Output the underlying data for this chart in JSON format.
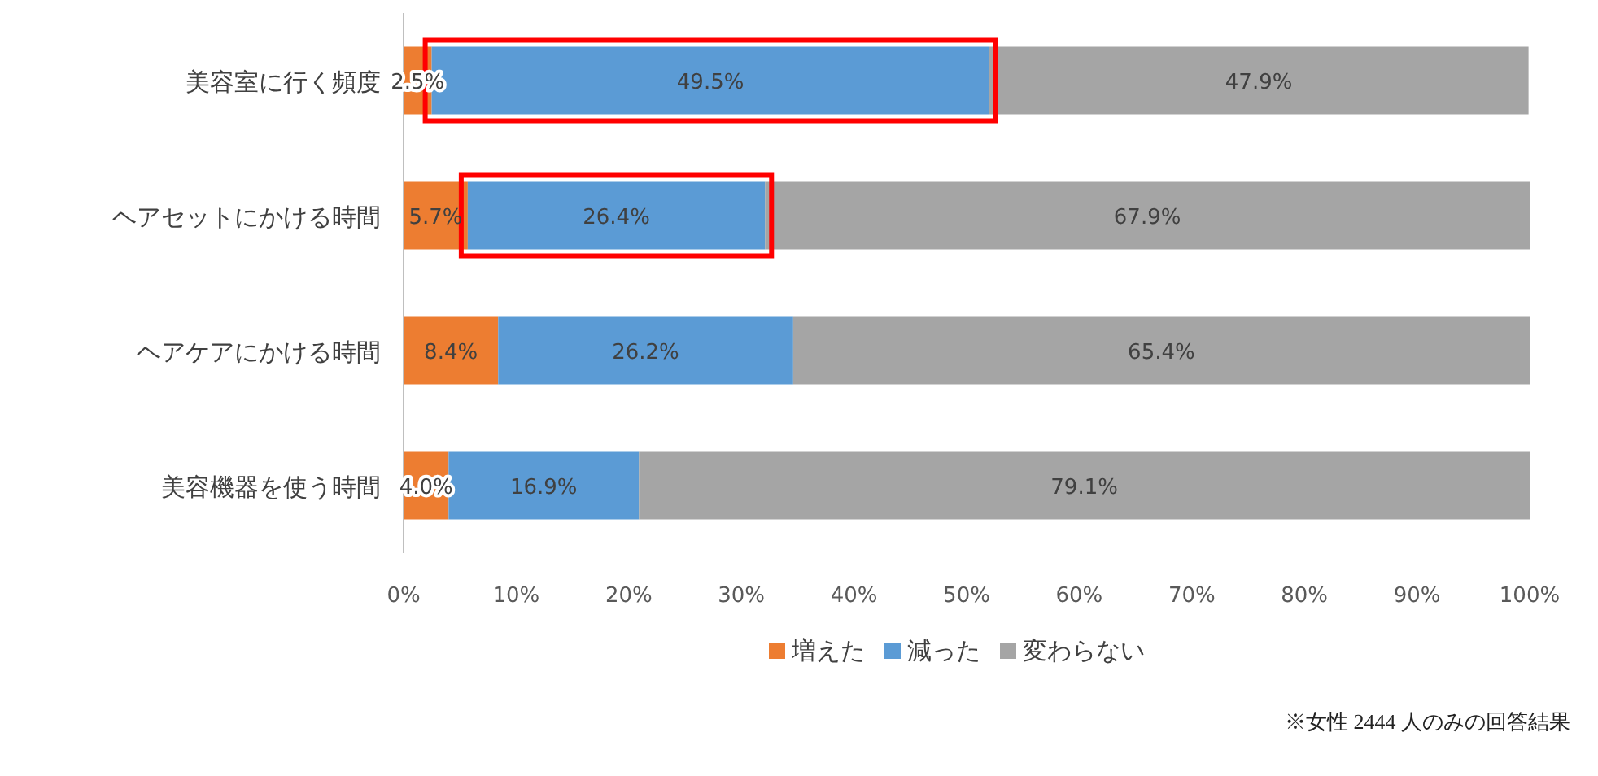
{
  "chart_data": {
    "type": "bar",
    "orientation": "horizontal",
    "stacked": true,
    "categories": [
      "美容室に行く頻度",
      "ヘアセットにかける時間",
      "ヘアケアにかける時間",
      "美容機器を使う時間"
    ],
    "series": [
      {
        "name": "増えた",
        "color": "#ed7d31",
        "values": [
          2.5,
          5.7,
          8.4,
          4.0
        ],
        "value_labels": [
          "2.5%",
          "5.7%",
          "8.4%",
          "4.0%"
        ]
      },
      {
        "name": "減った",
        "color": "#5b9bd5",
        "values": [
          49.5,
          26.4,
          26.2,
          16.9
        ],
        "value_labels": [
          "49.5%",
          "26.4%",
          "26.2%",
          "16.9%"
        ]
      },
      {
        "name": "変わらない",
        "color": "#a5a5a5",
        "values": [
          47.9,
          67.9,
          65.4,
          79.1
        ],
        "value_labels": [
          "47.9%",
          "67.9%",
          "65.4%",
          "79.1%"
        ]
      }
    ],
    "xlim": [
      0,
      100
    ],
    "xticks": [
      {
        "value": 0,
        "label": "0%"
      },
      {
        "value": 10,
        "label": "10%"
      },
      {
        "value": 20,
        "label": "20%"
      },
      {
        "value": 30,
        "label": "30%"
      },
      {
        "value": 40,
        "label": "40%"
      },
      {
        "value": 50,
        "label": "50%"
      },
      {
        "value": 60,
        "label": "60%"
      },
      {
        "value": 70,
        "label": "70%"
      },
      {
        "value": 80,
        "label": "80%"
      },
      {
        "value": 90,
        "label": "90%"
      },
      {
        "value": 100,
        "label": "100%"
      }
    ],
    "grid": false,
    "legend": "bottom",
    "annotations": [
      "※女性 2444 人のみの回答結果"
    ]
  }
}
